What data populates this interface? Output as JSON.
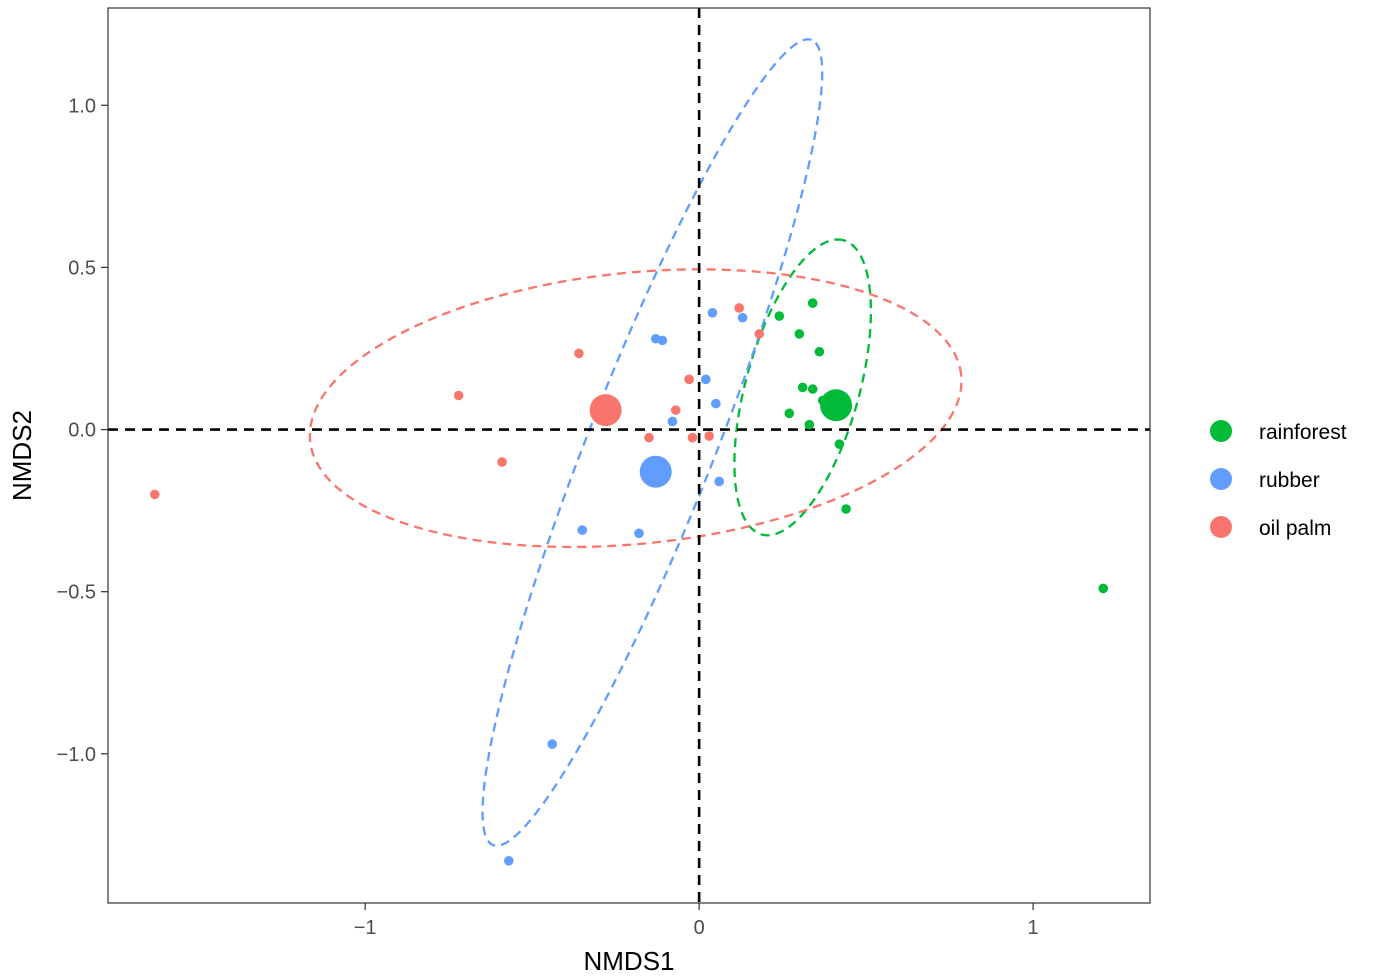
{
  "chart_data": {
    "type": "scatter",
    "xlabel": "NMDS1",
    "ylabel": "NMDS2",
    "xlim": [
      -1.77,
      1.35
    ],
    "ylim": [
      -1.46,
      1.3
    ],
    "x_ticks": [
      -1,
      0,
      1
    ],
    "x_tick_labels": [
      "−1",
      "0",
      "1"
    ],
    "y_ticks": [
      -1.0,
      -0.5,
      0.0,
      0.5,
      1.0
    ],
    "y_tick_labels": [
      "−1.0",
      "−0.5",
      "0.0",
      "0.5",
      "1.0"
    ],
    "grid": false,
    "reference_lines": {
      "x": 0,
      "y": 0,
      "style": "dashed"
    },
    "legend_position": "right",
    "series": [
      {
        "name": "rainforest",
        "color": "#00BA38",
        "centroid": [
          0.41,
          0.075
        ],
        "ellipse": {
          "cx": 0.31,
          "cy": 0.13,
          "rx": 0.47,
          "ry": 0.17,
          "angle_deg": 75
        },
        "points": [
          [
            0.34,
            0.39
          ],
          [
            0.24,
            0.35
          ],
          [
            0.3,
            0.295
          ],
          [
            0.36,
            0.24
          ],
          [
            0.31,
            0.13
          ],
          [
            0.34,
            0.125
          ],
          [
            0.37,
            0.09
          ],
          [
            0.27,
            0.05
          ],
          [
            0.33,
            0.015
          ],
          [
            0.42,
            -0.045
          ],
          [
            0.44,
            -0.245
          ],
          [
            1.21,
            -0.49
          ]
        ]
      },
      {
        "name": "rubber",
        "color": "#619CFF",
        "centroid": [
          -0.13,
          -0.13
        ],
        "ellipse": {
          "cx": -0.14,
          "cy": -0.04,
          "rx": 1.33,
          "ry": 0.19,
          "angle_deg": 69
        },
        "points": [
          [
            0.04,
            0.36
          ],
          [
            0.13,
            0.345
          ],
          [
            -0.13,
            0.28
          ],
          [
            -0.11,
            0.275
          ],
          [
            0.02,
            0.155
          ],
          [
            0.05,
            0.08
          ],
          [
            -0.08,
            0.025
          ],
          [
            0.06,
            -0.16
          ],
          [
            -0.35,
            -0.31
          ],
          [
            -0.18,
            -0.32
          ],
          [
            -0.44,
            -0.97
          ],
          [
            -0.57,
            -1.33
          ]
        ]
      },
      {
        "name": "oil palm",
        "color": "#F8766D",
        "centroid": [
          -0.28,
          0.06
        ],
        "ellipse": {
          "cx": -0.19,
          "cy": 0.066,
          "rx": 0.98,
          "ry": 0.418,
          "angle_deg": 6
        },
        "points": [
          [
            0.12,
            0.375
          ],
          [
            0.18,
            0.295
          ],
          [
            -0.36,
            0.235
          ],
          [
            -0.03,
            0.155
          ],
          [
            -0.72,
            0.105
          ],
          [
            -0.07,
            0.06
          ],
          [
            -0.15,
            -0.025
          ],
          [
            -0.02,
            -0.025
          ],
          [
            0.03,
            -0.02
          ],
          [
            -0.59,
            -0.1
          ],
          [
            -1.63,
            -0.2
          ]
        ]
      }
    ]
  }
}
